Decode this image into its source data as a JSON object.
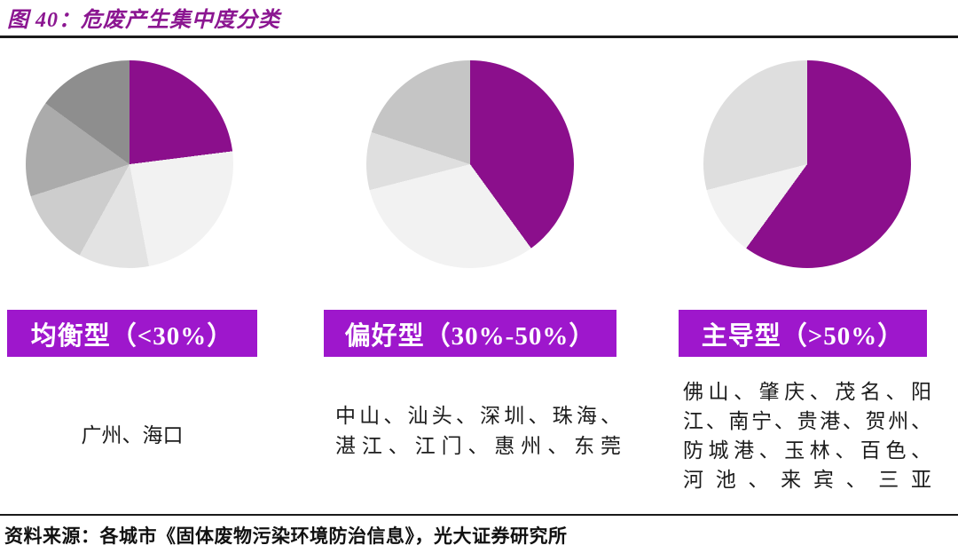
{
  "title": "图 40：危废产生集中度分类",
  "source": "资料来源：各城市《固体废物污染环境防治信息》，光大证券研究所",
  "colors": {
    "title_purple": "#8B1691",
    "pie_purple": "#8B0F8C",
    "bar_purple": "#9E17CC",
    "rule_dark": "#1A1A1A",
    "text_dark": "#1C1C1C"
  },
  "groups": [
    {
      "label": "均衡型（<30%）",
      "cities": [
        "广州",
        "海口"
      ],
      "city_lines": [
        "广州、海口"
      ]
    },
    {
      "label": "偏好型（30%-50%）",
      "cities": [
        "中山",
        "汕头",
        "深圳",
        "珠海",
        "湛江",
        "江门",
        "惠州",
        "东莞"
      ],
      "city_lines": [
        "中山、汕头、深圳、珠海、",
        "湛江、江门、惠州、东莞"
      ]
    },
    {
      "label": "主导型（>50%）",
      "cities": [
        "佛山",
        "肇庆",
        "茂名",
        "阳江",
        "南宁",
        "贵港",
        "贺州",
        "防城港",
        "玉林",
        "百色",
        "河池",
        "来宾",
        "三亚"
      ],
      "city_lines": [
        "佛山、肇庆、茂名、阳",
        "江、南宁、贵港、贺州、",
        "防城港、玉林、百色、",
        "河池、来宾、三亚"
      ]
    }
  ],
  "chart_data": [
    {
      "type": "pie",
      "title": "均衡型（<30%）",
      "values": [
        23,
        24,
        11,
        12,
        15,
        15
      ],
      "colors": [
        "#8B0F8C",
        "#F2F2F2",
        "#E3E3E3",
        "#CDCDCD",
        "#ABABAB",
        "#8E8E8E"
      ],
      "start_angle_deg": 0,
      "legend": "none",
      "note_cities": [
        "广州",
        "海口"
      ]
    },
    {
      "type": "pie",
      "title": "偏好型（30%-50%）",
      "values": [
        40,
        31,
        9,
        20
      ],
      "colors": [
        "#8B0F8C",
        "#F2F2F2",
        "#DFDFDF",
        "#C5C5C5"
      ],
      "start_angle_deg": 0,
      "legend": "none",
      "note_cities": [
        "中山",
        "汕头",
        "深圳",
        "珠海",
        "湛江",
        "江门",
        "惠州",
        "东莞"
      ]
    },
    {
      "type": "pie",
      "title": "主导型（>50%）",
      "values": [
        60,
        11,
        29
      ],
      "colors": [
        "#8B0F8C",
        "#F2F2F2",
        "#DEDEDE"
      ],
      "start_angle_deg": 0,
      "legend": "none",
      "note_cities": [
        "佛山",
        "肇庆",
        "茂名",
        "阳江",
        "南宁",
        "贵港",
        "贺州",
        "防城港",
        "玉林",
        "百色",
        "河池",
        "来宾",
        "三亚"
      ]
    }
  ]
}
